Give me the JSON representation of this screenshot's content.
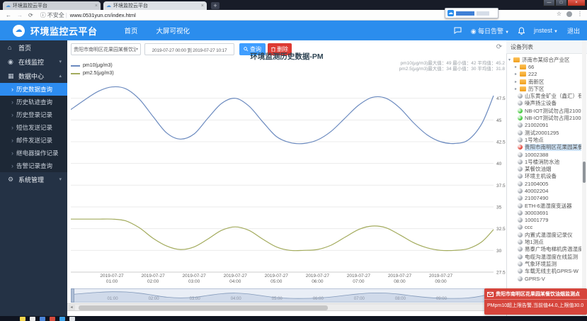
{
  "browser": {
    "tabs": [
      {
        "title": "环境监控云平台"
      },
      {
        "title": "环境监控云平台"
      }
    ],
    "security_label": "不安全",
    "url": "www.0531yun.cn/index.html"
  },
  "header": {
    "logo_title": "环境监控云平台",
    "nav": [
      {
        "label": "首页"
      },
      {
        "label": "大屏可视化"
      }
    ],
    "daily_alert_label": "每日告警",
    "username": "jnstest",
    "logout_label": "退出"
  },
  "sidebar": {
    "home_label": "首页",
    "online_label": "在线监控",
    "data_center_label": "数据中心",
    "system_label": "系统管理",
    "submenu": [
      {
        "label": "历史数据查询",
        "active": true
      },
      {
        "label": "历史轨迹查询",
        "active": false
      },
      {
        "label": "历史登录记录",
        "active": false
      },
      {
        "label": "短信发送记录",
        "active": false
      },
      {
        "label": "邮件发送记录",
        "active": false
      },
      {
        "label": "继电器操作记录",
        "active": false
      },
      {
        "label": "告警记录查询",
        "active": false
      }
    ]
  },
  "toolbar": {
    "device_select_value": "贵阳市南明区花果园某餐饮油烟",
    "date_range_value": "2019-07-27 00:00 到 2019-07-27 10:17",
    "search_label": "查询",
    "delete_label": "删除"
  },
  "chart_data": {
    "type": "line",
    "title": "环境监测历史数据-PM",
    "stats": [
      "pm10(μg/m3)最大值：49 最小值：42 平均值：45.2",
      "pm2.5(μg/m3)最大值：34 最小值：30 平均值：31.8"
    ],
    "x_date": "2019-07-27",
    "x_tick_times": [
      "01:00",
      "02:00",
      "03:00",
      "04:00",
      "05:00",
      "06:00",
      "07:00",
      "08:00",
      "09:00"
    ],
    "x_range_minutes": 617,
    "ylim": [
      27.5,
      50
    ],
    "y_ticks": [
      27.5,
      30,
      32.5,
      35,
      37.5,
      40,
      42.5,
      45,
      47.5
    ],
    "grid": true,
    "legend_position": "top-left",
    "minutes": [
      0,
      20,
      40,
      60,
      80,
      100,
      120,
      140,
      160,
      180,
      200,
      220,
      240,
      260,
      280,
      300,
      320,
      340,
      360,
      380,
      400,
      420,
      440,
      460,
      480,
      500,
      520,
      540,
      560,
      580,
      600,
      617
    ],
    "series": [
      {
        "name": "pm10(μg/m3)",
        "color": "#6b8abf",
        "values": [
          46.2,
          47.3,
          48.3,
          48.8,
          48.6,
          47.4,
          45.4,
          43.5,
          42.8,
          43.4,
          45.2,
          46.9,
          47.5,
          46.6,
          44.8,
          43.1,
          42.4,
          42.3,
          42.7,
          43.7,
          45.2,
          46.7,
          47.6,
          47.5,
          46.4,
          44.7,
          43.3,
          42.5,
          42.3,
          42.7,
          44.6,
          47.8
        ]
      },
      {
        "name": "pm2.5(μg/m3)",
        "color": "#a3ab5d",
        "values": [
          33.6,
          33.6,
          33.6,
          33.6,
          33.4,
          32.6,
          31.4,
          30.5,
          30.1,
          30.4,
          31.3,
          32.3,
          32.7,
          32.3,
          31.3,
          30.4,
          30.0,
          30.0,
          30.1,
          30.6,
          31.5,
          32.4,
          32.8,
          32.6,
          31.8,
          30.9,
          30.3,
          30.0,
          30.0,
          30.2,
          31.0,
          32.4
        ]
      }
    ]
  },
  "device_panel": {
    "title": "设备列表",
    "state_colors": {
      "gray": "#9aa0a8",
      "green": "#35c42f",
      "red": "#e0372c"
    },
    "nodes": [
      {
        "type": "folder",
        "label": "济南市某综合产业区",
        "level": 0,
        "expanded": true,
        "selected": false
      },
      {
        "type": "folder",
        "label": "66",
        "level": 1,
        "expanded": false,
        "selected": false
      },
      {
        "type": "folder",
        "label": "222",
        "level": 1,
        "expanded": false,
        "selected": false
      },
      {
        "type": "folder",
        "label": "南新区",
        "level": 1,
        "expanded": false,
        "selected": false
      },
      {
        "type": "folder",
        "label": "历下区",
        "level": 1,
        "expanded": false,
        "selected": false
      },
      {
        "type": "device",
        "state": "gray",
        "label": "山东黄金矿业（鑫汇）有",
        "level": 1,
        "selected": false
      },
      {
        "type": "device",
        "state": "gray",
        "label": "噪声扬尘设备",
        "level": 1,
        "selected": false
      },
      {
        "type": "device",
        "state": "green",
        "label": "NB-IOT测试勿占用21000",
        "level": 1,
        "selected": false
      },
      {
        "type": "device",
        "state": "green",
        "label": "NB-IOT测试勿占用21000",
        "level": 1,
        "selected": false
      },
      {
        "type": "device",
        "state": "gray",
        "label": "21002091",
        "level": 1,
        "selected": false
      },
      {
        "type": "device",
        "state": "gray",
        "label": "测试20001295",
        "level": 1,
        "selected": false
      },
      {
        "type": "device",
        "state": "gray",
        "label": "1号地点",
        "level": 1,
        "selected": false
      },
      {
        "type": "device",
        "state": "red",
        "label": "贵阳市南明区花果园某餐",
        "level": 1,
        "selected": true
      },
      {
        "type": "device",
        "state": "gray",
        "label": "10002388",
        "level": 1,
        "selected": false
      },
      {
        "type": "device",
        "state": "gray",
        "label": "1号楼消防水池",
        "level": 1,
        "selected": false
      },
      {
        "type": "device",
        "state": "gray",
        "label": "某餐饮油烟",
        "level": 1,
        "selected": false
      },
      {
        "type": "device",
        "state": "gray",
        "label": "环境主机设备",
        "level": 1,
        "selected": false
      },
      {
        "type": "device",
        "state": "gray",
        "label": "21004005",
        "level": 1,
        "selected": false
      },
      {
        "type": "device",
        "state": "gray",
        "label": "40002204",
        "level": 1,
        "selected": false
      },
      {
        "type": "device",
        "state": "gray",
        "label": "21007490",
        "level": 1,
        "selected": false
      },
      {
        "type": "device",
        "state": "gray",
        "label": "ETH-6温湿度变送器",
        "level": 1,
        "selected": false
      },
      {
        "type": "device",
        "state": "gray",
        "label": "30003691",
        "level": 1,
        "selected": false
      },
      {
        "type": "device",
        "state": "gray",
        "label": "10001779",
        "level": 1,
        "selected": false
      },
      {
        "type": "device",
        "state": "gray",
        "label": "ccc",
        "level": 1,
        "selected": false
      },
      {
        "type": "device",
        "state": "gray",
        "label": "内置式温湿度记录仪",
        "level": 1,
        "selected": false
      },
      {
        "type": "device",
        "state": "gray",
        "label": "地1测点",
        "level": 1,
        "selected": false
      },
      {
        "type": "device",
        "state": "gray",
        "label": "易泰广场电梯机房温湿度",
        "level": 1,
        "selected": false
      },
      {
        "type": "device",
        "state": "gray",
        "label": "电缆沟温湿度在线监测",
        "level": 1,
        "selected": false
      },
      {
        "type": "device",
        "state": "gray",
        "label": "气象环境监测",
        "level": 1,
        "selected": false
      },
      {
        "type": "device",
        "state": "gray",
        "label": "车载无线主机GPRS-W",
        "level": 1,
        "selected": false
      },
      {
        "type": "device",
        "state": "gray",
        "label": "GPRS-V",
        "level": 1,
        "selected": false
      }
    ]
  },
  "alert": {
    "title": "贵阳市南明区花果园某餐饮油烟监测点",
    "message": "PMpm10超上限告警,当前值44.0,上限值30.0",
    "color": "#d6453c"
  },
  "taskbar": {
    "icon_colors": [
      "#f3d64e",
      "#e8e8e8",
      "#4a84d8",
      "#d54b3d",
      "#3aa0e8",
      "#dfe3e8"
    ]
  },
  "icons": {
    "logo": "cloud",
    "daily_alert": "badge",
    "notifications": "bell",
    "messages": "chat-bubble",
    "search": "magnifier",
    "delete": "trash",
    "toolbox": "restore",
    "alert_title": "envelope",
    "home": "house",
    "online": "monitor",
    "data_center": "grid",
    "system": "gear"
  }
}
